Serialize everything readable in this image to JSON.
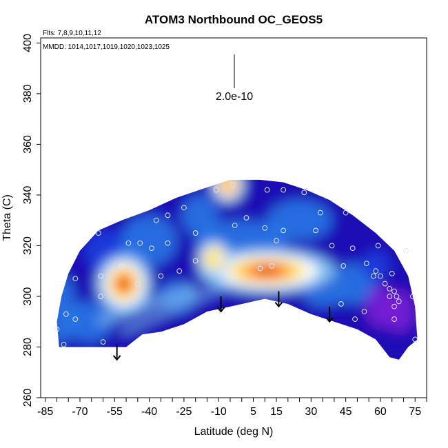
{
  "chart_data": {
    "type": "heatmap",
    "title": "ATOM3 Northbound OC_GEOS5",
    "notes": [
      "Flts: 7,8,9,10,11,12",
      "MMDD: 1014,1017,1019,1020,1023,1025"
    ],
    "xlabel": "Latitude (deg N)",
    "ylabel": "Theta (C)",
    "xlim": [
      -87,
      80
    ],
    "ylim": [
      260,
      402
    ],
    "x_ticks": [
      -85,
      -70,
      -55,
      -40,
      -25,
      -10,
      5,
      15,
      30,
      45,
      60,
      75
    ],
    "y_ticks": [
      260,
      280,
      300,
      320,
      340,
      360,
      380,
      400
    ],
    "scale_bar_label": "2.0e-10",
    "grid": false,
    "legend": "none",
    "colormap": [
      "#7a1fd6",
      "#1a10b5",
      "#1f3ee0",
      "#2a7de8",
      "#7fc0f2",
      "#ffffff",
      "#ffe25a",
      "#ffa21f",
      "#ff4a10",
      "#c40000"
    ],
    "hotspots": [
      {
        "lat": -51,
        "theta": 305,
        "value": 1.0
      },
      {
        "lat": 11,
        "theta": 310,
        "value": 0.95
      },
      {
        "lat": -12,
        "theta": 315,
        "value": 0.5
      },
      {
        "lat": -6,
        "theta": 344,
        "value": 0.6
      },
      {
        "lat": 60,
        "theta": 296,
        "value": 0.0
      },
      {
        "lat": 68,
        "theta": 294,
        "value": 0.0
      }
    ],
    "profile_arrows": [
      {
        "lat": -54,
        "theta_top": 281,
        "theta_bottom": 275
      },
      {
        "lat": -9,
        "theta_top": 300,
        "theta_bottom": 294
      },
      {
        "lat": 16,
        "theta_top": 302,
        "theta_bottom": 296
      },
      {
        "lat": 38,
        "theta_top": 296,
        "theta_bottom": 290
      }
    ],
    "observations": [
      {
        "lat": -77,
        "theta": 281
      },
      {
        "lat": -80,
        "theta": 287
      },
      {
        "lat": -76,
        "theta": 293
      },
      {
        "lat": -72,
        "theta": 291
      },
      {
        "lat": -72,
        "theta": 307
      },
      {
        "lat": -60,
        "theta": 282
      },
      {
        "lat": -61,
        "theta": 300
      },
      {
        "lat": -61,
        "theta": 308
      },
      {
        "lat": -62,
        "theta": 325
      },
      {
        "lat": -49,
        "theta": 321
      },
      {
        "lat": -52,
        "theta": 312
      },
      {
        "lat": -45,
        "theta": 305
      },
      {
        "lat": -44,
        "theta": 321
      },
      {
        "lat": -39,
        "theta": 319
      },
      {
        "lat": -35,
        "theta": 308
      },
      {
        "lat": -37,
        "theta": 330
      },
      {
        "lat": -32,
        "theta": 332
      },
      {
        "lat": -32,
        "theta": 321
      },
      {
        "lat": -27,
        "theta": 310
      },
      {
        "lat": -25,
        "theta": 335
      },
      {
        "lat": -20,
        "theta": 325
      },
      {
        "lat": -20,
        "theta": 314
      },
      {
        "lat": -11,
        "theta": 342
      },
      {
        "lat": -4,
        "theta": 344
      },
      {
        "lat": -10,
        "theta": 315
      },
      {
        "lat": -3,
        "theta": 328
      },
      {
        "lat": 2,
        "theta": 331
      },
      {
        "lat": 8,
        "theta": 311
      },
      {
        "lat": 11,
        "theta": 342
      },
      {
        "lat": 13,
        "theta": 312
      },
      {
        "lat": 15,
        "theta": 322
      },
      {
        "lat": 10,
        "theta": 327
      },
      {
        "lat": 18,
        "theta": 342
      },
      {
        "lat": 18,
        "theta": 326
      },
      {
        "lat": 27,
        "theta": 341
      },
      {
        "lat": 32,
        "theta": 326
      },
      {
        "lat": 34,
        "theta": 333
      },
      {
        "lat": 39,
        "theta": 320
      },
      {
        "lat": 44,
        "theta": 312
      },
      {
        "lat": 43,
        "theta": 297
      },
      {
        "lat": 45,
        "theta": 333
      },
      {
        "lat": 48,
        "theta": 319
      },
      {
        "lat": 49,
        "theta": 291
      },
      {
        "lat": 53,
        "theta": 294
      },
      {
        "lat": 54,
        "theta": 313
      },
      {
        "lat": 57,
        "theta": 308
      },
      {
        "lat": 58,
        "theta": 310
      },
      {
        "lat": 59,
        "theta": 320
      },
      {
        "lat": 60,
        "theta": 308
      },
      {
        "lat": 62,
        "theta": 305
      },
      {
        "lat": 64,
        "theta": 303
      },
      {
        "lat": 64,
        "theta": 300
      },
      {
        "lat": 65,
        "theta": 309
      },
      {
        "lat": 66,
        "theta": 302
      },
      {
        "lat": 66,
        "theta": 291
      },
      {
        "lat": 66,
        "theta": 296
      },
      {
        "lat": 67,
        "theta": 300
      },
      {
        "lat": 68,
        "theta": 298
      },
      {
        "lat": 71,
        "theta": 318
      },
      {
        "lat": 74,
        "theta": 300
      },
      {
        "lat": 75,
        "theta": 283
      }
    ]
  }
}
